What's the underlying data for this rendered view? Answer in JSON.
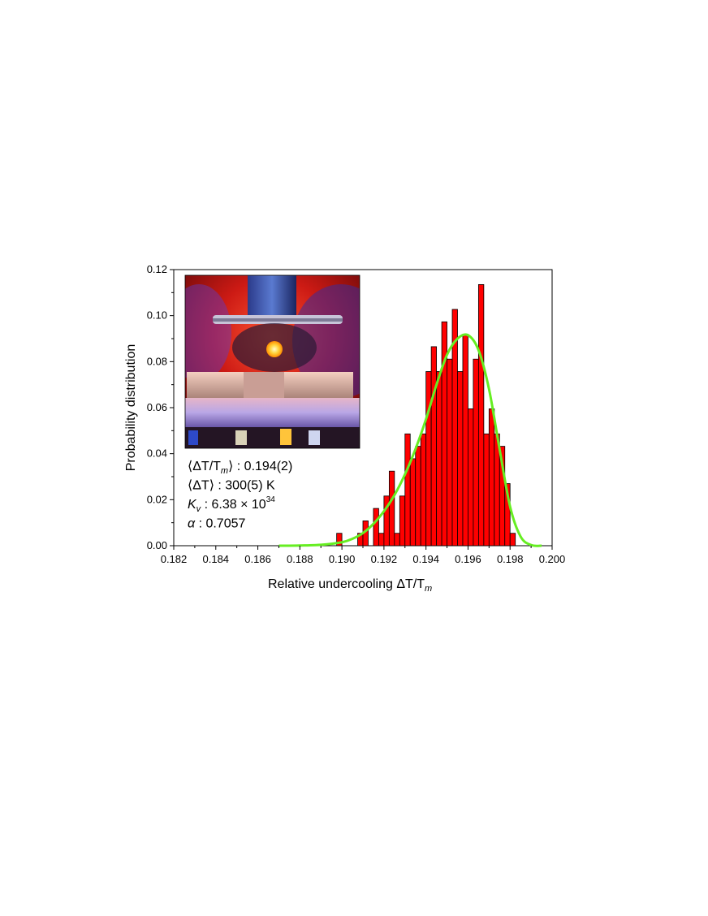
{
  "chart_data": {
    "type": "bar",
    "xlabel": "Relative undercooling ΔT/T",
    "xlabel_sub": "m",
    "ylabel": "Probability distribution",
    "xlim": [
      0.182,
      0.2
    ],
    "ylim": [
      0.0,
      0.12
    ],
    "xticks": [
      "0.182",
      "0.184",
      "0.186",
      "0.188",
      "0.190",
      "0.192",
      "0.194",
      "0.196",
      "0.198",
      "0.200"
    ],
    "yticks": [
      "0.00",
      "0.02",
      "0.04",
      "0.06",
      "0.08",
      "0.10",
      "0.12"
    ],
    "bin_width": 0.00025,
    "histogram": {
      "bin_left": [
        0.18975,
        0.19075,
        0.191,
        0.1915,
        0.19175,
        0.192,
        0.19225,
        0.1925,
        0.19275,
        0.193,
        0.19325,
        0.1935,
        0.19375,
        0.194,
        0.19425,
        0.1945,
        0.19475,
        0.195,
        0.19525,
        0.1955,
        0.19575,
        0.196,
        0.19625,
        0.1965,
        0.19675,
        0.197,
        0.19725,
        0.1975,
        0.19775,
        0.198
      ],
      "values": [
        0.0054,
        0.0054,
        0.0108,
        0.0162,
        0.0054,
        0.0216,
        0.0324,
        0.0054,
        0.0216,
        0.0486,
        0.0378,
        0.0432,
        0.0486,
        0.0757,
        0.0865,
        0.0757,
        0.0973,
        0.0811,
        0.1027,
        0.0757,
        0.0919,
        0.0595,
        0.0811,
        0.1135,
        0.0486,
        0.0595,
        0.0486,
        0.0432,
        0.027,
        0.0054
      ]
    },
    "fit": {
      "name": "fit",
      "x": [
        0.187,
        0.188,
        0.189,
        0.19,
        0.1905,
        0.191,
        0.1915,
        0.192,
        0.1925,
        0.193,
        0.1935,
        0.194,
        0.1945,
        0.195,
        0.1955,
        0.196,
        0.1965,
        0.197,
        0.1975,
        0.198,
        0.1985,
        0.199,
        0.1995
      ],
      "y": [
        0.0,
        0.0001,
        0.0004,
        0.0015,
        0.003,
        0.0055,
        0.0095,
        0.015,
        0.022,
        0.031,
        0.042,
        0.055,
        0.07,
        0.083,
        0.09,
        0.0915,
        0.085,
        0.068,
        0.042,
        0.017,
        0.004,
        0.0003,
        0.0
      ],
      "color": "#66ee22"
    },
    "bar_color": "#ff0000",
    "bar_edge": "#000000",
    "grid": false
  },
  "annotations": [
    {
      "name": "mean-relative-undercooling",
      "parts": [
        [
          "⟨ΔT/T",
          ""
        ],
        [
          "m",
          "sub"
        ],
        [
          "⟩ : 0.194(2)",
          ""
        ]
      ]
    },
    {
      "name": "mean-undercooling",
      "parts": [
        [
          "⟨ΔT⟩ : 300(5) K",
          ""
        ]
      ]
    },
    {
      "name": "kv-value",
      "parts": [
        [
          "K",
          "i"
        ],
        [
          "v",
          "sub"
        ],
        [
          " : 6.38 × 10",
          ""
        ],
        [
          "34",
          "sup"
        ]
      ]
    },
    {
      "name": "alpha-value",
      "parts": [
        [
          "α",
          "i"
        ],
        [
          " : 0.7057",
          ""
        ]
      ]
    }
  ],
  "inset": {
    "description_icon": "levitator-photo"
  }
}
